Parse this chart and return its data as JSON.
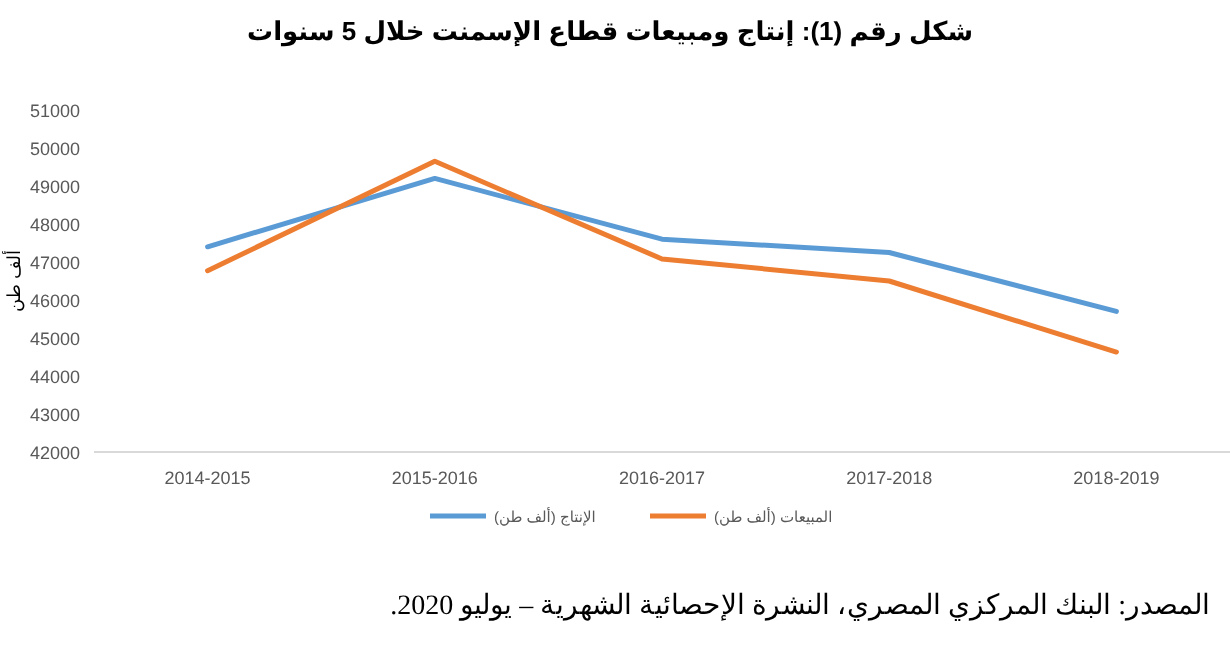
{
  "chart_data": {
    "type": "line",
    "title": "شكل رقم (1): إنتاج ومبيعات قطاع الإسمنت خلال 5 سنوات",
    "ylabel": "ألف طن",
    "categories": [
      "2014-2015",
      "2015-2016",
      "2016-2017",
      "2017-2018",
      "2018-2019"
    ],
    "series": [
      {
        "name": "الإنتاج (ألف طن)",
        "color": "#5b9bd5",
        "values": [
          47400,
          49200,
          47600,
          47250,
          45700
        ]
      },
      {
        "name": "المبيعات (ألف طن)",
        "color": "#ed7d31",
        "values": [
          46770,
          49650,
          47080,
          46500,
          44630
        ]
      }
    ],
    "ylim": [
      42000,
      51000
    ],
    "yticks": [
      42000,
      43000,
      44000,
      45000,
      46000,
      47000,
      48000,
      49000,
      50000,
      51000
    ],
    "legend": "bottom",
    "grid": false,
    "marker": "none",
    "line_style": "solid",
    "annotations": [
      "المصدر: البنك المركزي المصري، النشرة الإحصائية الشهرية – يوليو 2020."
    ]
  }
}
